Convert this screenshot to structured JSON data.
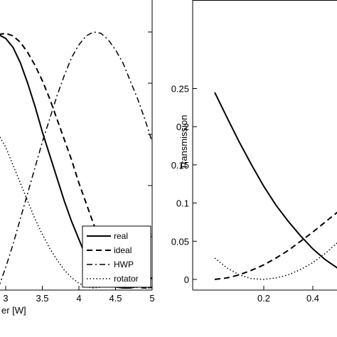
{
  "chart_data": [
    {
      "type": "line",
      "title": "",
      "xlabel": "er [W]",
      "ylabel": "",
      "xlim": [
        2.9,
        5.0
      ],
      "ylim": [
        0.0,
        1.0
      ],
      "xticks": [
        3,
        3.5,
        4,
        4.5,
        5
      ],
      "xtick_labels": [
        "3",
        "3.5",
        "4",
        "4.5",
        "5"
      ],
      "legend": {
        "placement": "bottom-right"
      },
      "series": [
        {
          "name": "real",
          "style": "solid",
          "x": [
            2.9,
            3.0,
            3.1,
            3.2,
            3.3,
            3.4,
            3.5,
            3.6,
            3.7,
            3.8,
            3.9,
            4.0,
            4.1,
            4.2,
            4.3,
            4.4,
            4.5,
            4.6,
            4.7,
            4.8,
            4.9,
            5.0
          ],
          "y": [
            0.99,
            0.975,
            0.94,
            0.88,
            0.8,
            0.71,
            0.61,
            0.52,
            0.43,
            0.34,
            0.26,
            0.19,
            0.12,
            0.07,
            0.035,
            0.015,
            0.004,
            0.0,
            0.0,
            0.005,
            0.02,
            0.04
          ]
        },
        {
          "name": "ideal",
          "style": "dashed",
          "x": [
            2.9,
            3.0,
            3.1,
            3.2,
            3.3,
            3.4,
            3.5,
            3.6,
            3.7,
            3.8,
            3.9,
            4.0,
            4.1,
            4.2,
            4.3,
            4.4,
            4.5,
            4.6,
            4.7,
            4.8,
            4.9,
            5.0
          ],
          "y": [
            0.99,
            0.995,
            0.985,
            0.96,
            0.92,
            0.87,
            0.81,
            0.74,
            0.66,
            0.58,
            0.5,
            0.41,
            0.33,
            0.25,
            0.18,
            0.12,
            0.07,
            0.035,
            0.012,
            0.002,
            0.0,
            0.002
          ]
        },
        {
          "name": "HWP",
          "style": "dash-dot",
          "x": [
            2.9,
            3.0,
            3.1,
            3.2,
            3.3,
            3.4,
            3.5,
            3.6,
            3.7,
            3.8,
            3.9,
            4.0,
            4.1,
            4.2,
            4.3,
            4.4,
            4.5,
            4.6,
            4.7,
            4.8,
            4.9,
            5.0
          ],
          "y": [
            0.0,
            0.08,
            0.17,
            0.27,
            0.37,
            0.47,
            0.57,
            0.66,
            0.75,
            0.83,
            0.9,
            0.95,
            0.985,
            1.0,
            0.995,
            0.97,
            0.93,
            0.88,
            0.81,
            0.74,
            0.66,
            0.57
          ]
        },
        {
          "name": "rotator",
          "style": "dotted",
          "x": [
            2.9,
            3.0,
            3.1,
            3.2,
            3.3,
            3.4,
            3.5,
            3.6,
            3.7,
            3.8,
            3.9,
            4.0,
            4.1,
            4.2,
            4.3,
            4.4,
            4.5,
            4.6,
            4.7,
            4.8,
            4.9,
            5.0
          ],
          "y": [
            0.6,
            0.55,
            0.48,
            0.41,
            0.34,
            0.27,
            0.21,
            0.155,
            0.11,
            0.07,
            0.04,
            0.018,
            0.005,
            0.0,
            0.003,
            0.013,
            0.03,
            0.055,
            0.085,
            0.12,
            0.16,
            0.21
          ]
        }
      ]
    },
    {
      "type": "line",
      "title": "",
      "xlabel": "",
      "ylabel": "Transmission",
      "xlim": [
        0.0,
        0.5
      ],
      "ylim": [
        -0.01,
        0.29
      ],
      "xticks": [
        0.2,
        0.4
      ],
      "xtick_labels": [
        "0.2",
        "0.4"
      ],
      "yticks": [
        0,
        0.05,
        0.1,
        0.15,
        0.2,
        0.25
      ],
      "ytick_labels": [
        "0",
        "0.05",
        "0.1",
        "0.15",
        "0.2",
        "0.25"
      ],
      "series": [
        {
          "name": "real",
          "style": "solid",
          "x": [
            0.0,
            0.05,
            0.1,
            0.15,
            0.2,
            0.25,
            0.3,
            0.35,
            0.4,
            0.45,
            0.5
          ],
          "y": [
            0.245,
            0.212,
            0.18,
            0.15,
            0.122,
            0.097,
            0.076,
            0.057,
            0.04,
            0.026,
            0.015
          ]
        },
        {
          "name": "ideal",
          "style": "dashed",
          "x": [
            0.0,
            0.05,
            0.1,
            0.15,
            0.2,
            0.25,
            0.3,
            0.35,
            0.4,
            0.45,
            0.5
          ],
          "y": [
            0.0,
            0.002,
            0.006,
            0.012,
            0.019,
            0.028,
            0.038,
            0.05,
            0.062,
            0.075,
            0.088
          ]
        },
        {
          "name": "rotator",
          "style": "dotted",
          "x": [
            0.0,
            0.05,
            0.1,
            0.15,
            0.2,
            0.25,
            0.3,
            0.35,
            0.4,
            0.45,
            0.5
          ],
          "y": [
            0.028,
            0.015,
            0.006,
            0.001,
            0.0,
            0.002,
            0.006,
            0.013,
            0.022,
            0.034,
            0.048
          ]
        }
      ]
    }
  ]
}
